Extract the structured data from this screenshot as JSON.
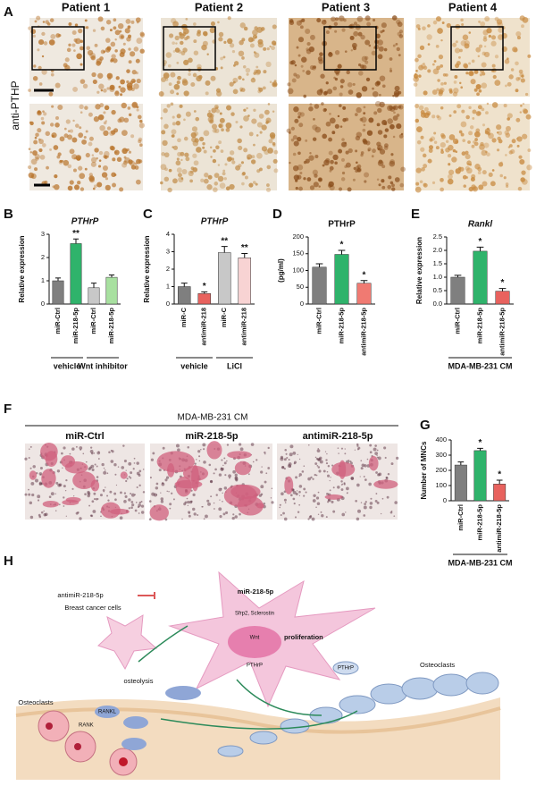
{
  "panel_labels": [
    "A",
    "B",
    "C",
    "D",
    "E",
    "F",
    "G",
    "H"
  ],
  "panel_a": {
    "patients": [
      "Patient 1",
      "Patient 2",
      "Patient 3",
      "Patient 4"
    ],
    "stain": "anti-PTHP"
  },
  "panel_f": {
    "group": "MDA-MB-231  CM",
    "conditions": [
      "miR-Ctrl",
      "miR-218-5p",
      "antimiR-218-5p"
    ]
  },
  "panel_h": {
    "inhibitor": "antimiR-218-5p",
    "mirna": "miR-218-5p",
    "targets": "Sfrp2, Sclerostin",
    "wnt": "Wnt",
    "proliferation": "proliferation",
    "pthrp": "PTHrP",
    "cancer_cells": "Breast cancer cells",
    "osteolysis": "osteolysis",
    "osteoclasts_left": "Osteoclasts",
    "osteoclasts_right": "Osteoclasts",
    "rank": "RANK",
    "rankl": "RANKL",
    "pthrp_secreted": "PTHrP"
  },
  "chart_data": [
    {
      "type": "bar",
      "title": "PTHrP",
      "italic_title": true,
      "y_label": "Relative expression",
      "categories": [
        "miR-Ctrl",
        "miR-218-5p",
        "miR-Ctrl",
        "miR-218-5p"
      ],
      "values": [
        1.0,
        2.6,
        0.7,
        1.15
      ],
      "errors": [
        0.12,
        0.2,
        0.2,
        0.1
      ],
      "colors": [
        "#7f7f7f",
        "#2fb36b",
        "#c8c8c8",
        "#a8e0a0"
      ],
      "significance": [
        null,
        "**",
        null,
        null
      ],
      "groups": [
        "vehicle",
        "Wnt inhibitor"
      ],
      "ylim": [
        0,
        3
      ],
      "yticks": [
        0,
        1,
        2,
        3
      ]
    },
    {
      "type": "bar",
      "title": "PTHrP",
      "italic_title": true,
      "y_label": "Relative expression",
      "categories": [
        "miR-C",
        "antimiR-218",
        "miR-C",
        "antimiR-218"
      ],
      "values": [
        1.0,
        0.6,
        2.95,
        2.65
      ],
      "errors": [
        0.2,
        0.1,
        0.35,
        0.25
      ],
      "colors": [
        "#7f7f7f",
        "#e8625e",
        "#c8c8c8",
        "#f8d3d3"
      ],
      "significance": [
        null,
        "*",
        "**",
        "**"
      ],
      "groups": [
        "vehicle",
        "LiCl"
      ],
      "ylim": [
        0,
        4
      ],
      "yticks": [
        0,
        1,
        2,
        3,
        4
      ]
    },
    {
      "type": "bar",
      "title": "PTHrP",
      "italic_title": false,
      "y_label": "(pg/ml)",
      "categories": [
        "miR-Ctrl",
        "miR-218-5p",
        "antimiR-218-5p"
      ],
      "values": [
        110,
        148,
        62
      ],
      "errors": [
        10,
        12,
        8
      ],
      "colors": [
        "#7f7f7f",
        "#2fb36b",
        "#f07a72"
      ],
      "significance": [
        null,
        "*",
        "*"
      ],
      "ylim": [
        0,
        200
      ],
      "yticks": [
        0,
        50,
        100,
        150,
        200
      ]
    },
    {
      "type": "bar",
      "title": "Rankl",
      "italic_title": true,
      "y_label": "Relative expression",
      "categories": [
        "miR-Ctrl",
        "miR-218-5p",
        "antimiR-218-5p"
      ],
      "values": [
        1.0,
        1.97,
        0.48
      ],
      "errors": [
        0.07,
        0.15,
        0.1
      ],
      "colors": [
        "#7f7f7f",
        "#2fb36b",
        "#e8625e"
      ],
      "significance": [
        null,
        "*",
        "*"
      ],
      "groups": [
        "MDA-MB-231 CM"
      ],
      "ylim": [
        0,
        2.5
      ],
      "yticks": [
        {
          "value": 0,
          "label": "0.0"
        },
        0.5,
        {
          "value": 1,
          "label": "1.0"
        },
        1.5,
        {
          "value": 2,
          "label": "2.0"
        },
        2.5
      ]
    },
    {
      "type": "bar",
      "y_label": "Number of MNCs",
      "categories": [
        "miR-Ctrl",
        "miR-218-5p",
        "antimiR-218-5p"
      ],
      "values": [
        235,
        330,
        110
      ],
      "errors": [
        20,
        15,
        25
      ],
      "colors": [
        "#7f7f7f",
        "#2fb36b",
        "#e8625e"
      ],
      "significance": [
        null,
        "*",
        "*"
      ],
      "groups": [
        "MDA-MB-231 CM"
      ],
      "ylim": [
        0,
        400
      ],
      "yticks": [
        0,
        100,
        200,
        300,
        400
      ]
    }
  ]
}
